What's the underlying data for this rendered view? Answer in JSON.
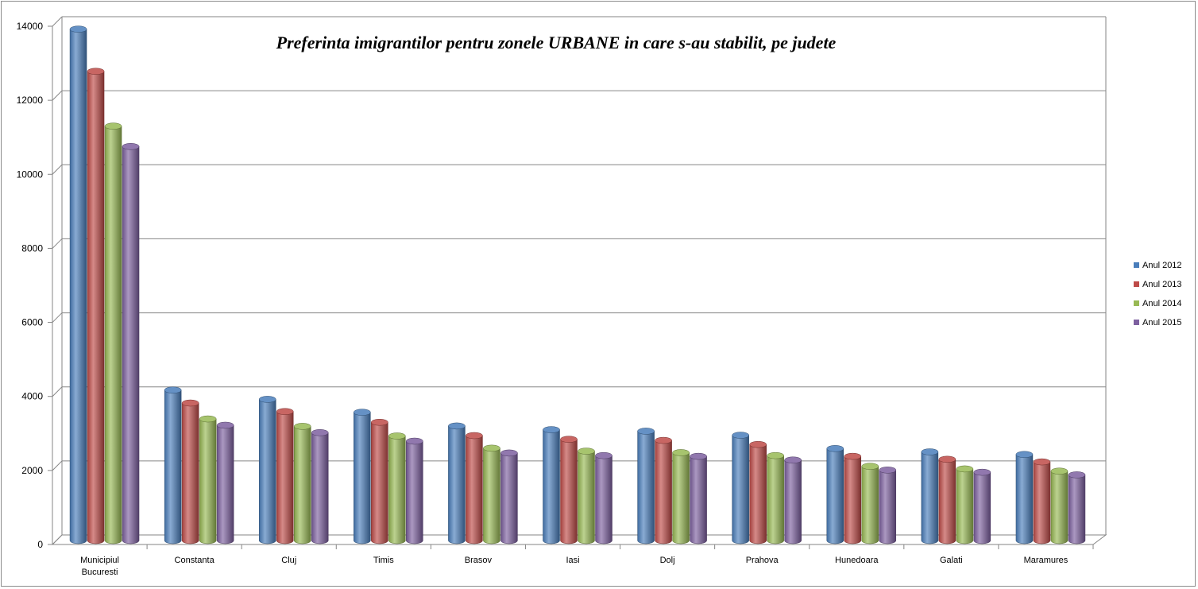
{
  "chart_data": {
    "type": "bar",
    "title": "Preferinta  imigrantilor pentru zonele URBANE in care s-au stabilit, pe judete",
    "xlabel": "",
    "ylabel": "",
    "ylim": [
      0,
      14000
    ],
    "yticks": [
      0,
      2000,
      4000,
      6000,
      8000,
      10000,
      12000,
      14000
    ],
    "grid": true,
    "legend_position": "right",
    "categories": [
      [
        "Municipiul",
        "Bucuresti"
      ],
      [
        "Constanta"
      ],
      [
        "Cluj"
      ],
      [
        "Timis"
      ],
      [
        "Brasov"
      ],
      [
        "Iasi"
      ],
      [
        "Dolj"
      ],
      [
        "Prahova"
      ],
      [
        "Hunedoara"
      ],
      [
        "Galati"
      ],
      [
        "Maramures"
      ]
    ],
    "series": [
      {
        "name": "Anul 2012",
        "color": "#4a7ebb",
        "values": [
          13900,
          4150,
          3900,
          3550,
          3180,
          3080,
          3040,
          2930,
          2570,
          2480,
          2410
        ]
      },
      {
        "name": "Anul 2013",
        "color": "#be4b48",
        "values": [
          12760,
          3800,
          3570,
          3280,
          2920,
          2820,
          2790,
          2680,
          2360,
          2280,
          2210
        ]
      },
      {
        "name": "Anul 2014",
        "color": "#98b954",
        "values": [
          11280,
          3370,
          3170,
          2910,
          2580,
          2500,
          2460,
          2380,
          2090,
          2020,
          1960
        ]
      },
      {
        "name": "Anul 2015",
        "color": "#7d60a0",
        "values": [
          10730,
          3200,
          3000,
          2770,
          2450,
          2380,
          2360,
          2260,
          1990,
          1930,
          1860
        ]
      }
    ]
  }
}
